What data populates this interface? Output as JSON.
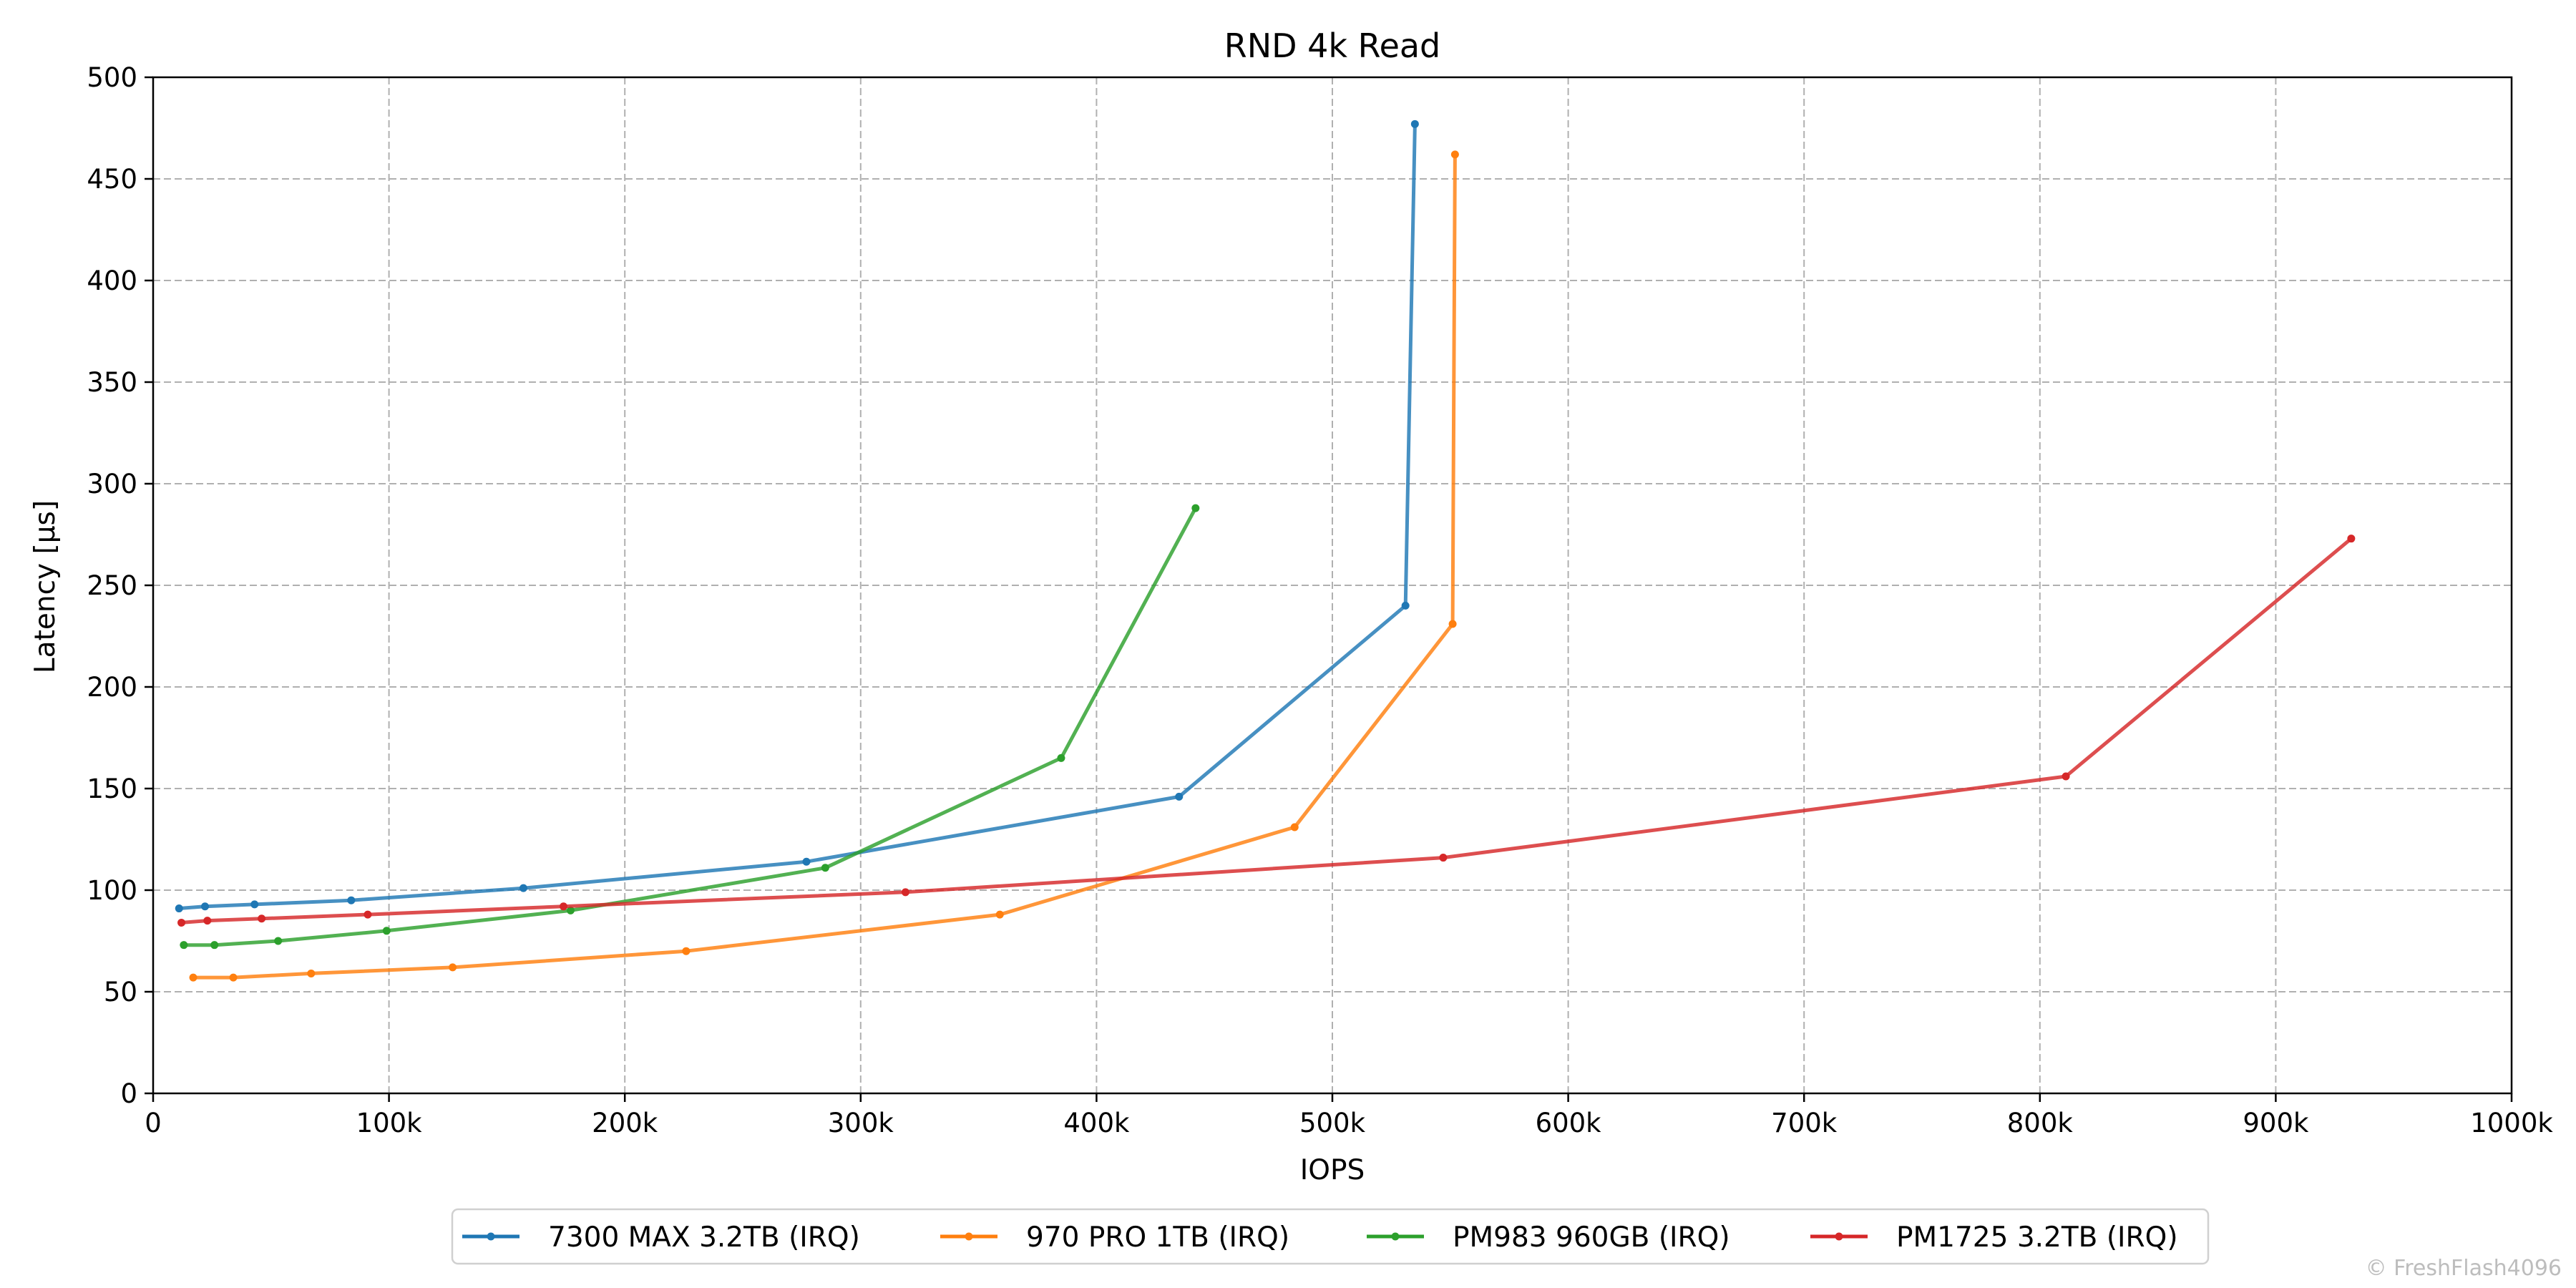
{
  "chart_data": {
    "type": "line",
    "title": "RND 4k Read",
    "xlabel": "IOPS",
    "ylabel": "Latency [µs]",
    "xlim": [
      0,
      1000000
    ],
    "ylim": [
      0,
      500
    ],
    "x_ticks": [
      0,
      100000,
      200000,
      300000,
      400000,
      500000,
      600000,
      700000,
      800000,
      900000,
      1000000
    ],
    "x_tick_labels": [
      "0",
      "100k",
      "200k",
      "300k",
      "400k",
      "500k",
      "600k",
      "700k",
      "800k",
      "900k",
      "1000k"
    ],
    "y_ticks": [
      0,
      50,
      100,
      150,
      200,
      250,
      300,
      350,
      400,
      450,
      500
    ],
    "y_tick_labels": [
      "0",
      "50",
      "100",
      "150",
      "200",
      "250",
      "300",
      "350",
      "400",
      "450",
      "500"
    ],
    "grid": true,
    "legend_position": "bottom-center",
    "credit": "© FreshFlash4096",
    "series": [
      {
        "name": "7300 MAX 3.2TB (IRQ)",
        "color": "#1f77b4",
        "x": [
          11000,
          22000,
          43000,
          84000,
          157000,
          277000,
          435000,
          531000,
          535000
        ],
        "y": [
          91,
          92,
          93,
          95,
          101,
          114,
          146,
          240,
          477
        ]
      },
      {
        "name": "970 PRO 1TB (IRQ)",
        "color": "#ff7f0e",
        "x": [
          17000,
          34000,
          67000,
          127000,
          226000,
          359000,
          484000,
          551000,
          552000
        ],
        "y": [
          57,
          57,
          59,
          62,
          70,
          88,
          131,
          231,
          462
        ]
      },
      {
        "name": "PM983 960GB (IRQ)",
        "color": "#2ca02c",
        "x": [
          13000,
          26000,
          53000,
          99000,
          177000,
          285000,
          385000,
          442000
        ],
        "y": [
          73,
          73,
          75,
          80,
          90,
          111,
          165,
          288
        ]
      },
      {
        "name": "PM1725 3.2TB (IRQ)",
        "color": "#d62728",
        "x": [
          12000,
          23000,
          46000,
          91000,
          174000,
          319000,
          547000,
          811000,
          932000
        ],
        "y": [
          84,
          85,
          86,
          88,
          92,
          99,
          116,
          156,
          273
        ]
      }
    ]
  }
}
